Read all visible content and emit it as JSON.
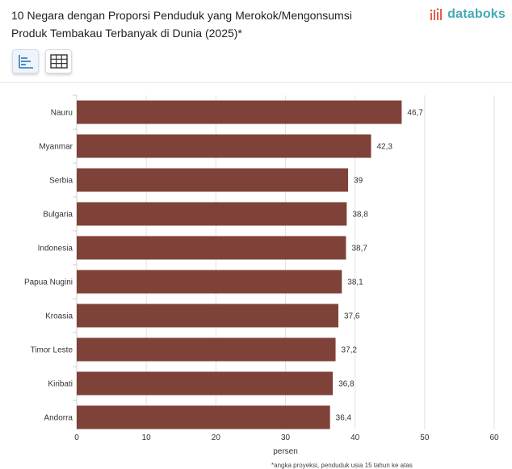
{
  "header": {
    "title_line1": "10 Negara dengan Proporsi Penduduk yang Merokok/Mengonsumsi",
    "title_line2": "Produk Tembakau Terbanyak di Dunia (2025)*",
    "brand": "databoks",
    "brand_color": "#41a9b5"
  },
  "toolbar": {
    "buttons": [
      {
        "name": "bar-chart-view-button",
        "icon": "bar-list-icon",
        "active": true
      },
      {
        "name": "table-view-button",
        "icon": "table-grid-icon",
        "active": false
      }
    ]
  },
  "chart_data": {
    "type": "bar",
    "orientation": "horizontal",
    "categories": [
      "Nauru",
      "Myanmar",
      "Serbia",
      "Bulgaria",
      "Indonesia",
      "Papua Nugini",
      "Kroasia",
      "Timor Leste",
      "Kiribati",
      "Andorra"
    ],
    "values": [
      46.7,
      42.3,
      39,
      38.8,
      38.7,
      38.1,
      37.6,
      37.2,
      36.8,
      36.4
    ],
    "value_labels": [
      "46,7",
      "42,3",
      "39",
      "38,8",
      "38,7",
      "38,1",
      "37,6",
      "37,2",
      "36,8",
      "36,4"
    ],
    "xlabel": "persen",
    "xlim": [
      0,
      60
    ],
    "xticks": [
      0,
      10,
      20,
      30,
      40,
      50,
      60
    ],
    "grid": true,
    "bar_color": "#7f4238"
  },
  "footnote": "*angka proyeksi, penduduk usia 15 tahun ke atas"
}
